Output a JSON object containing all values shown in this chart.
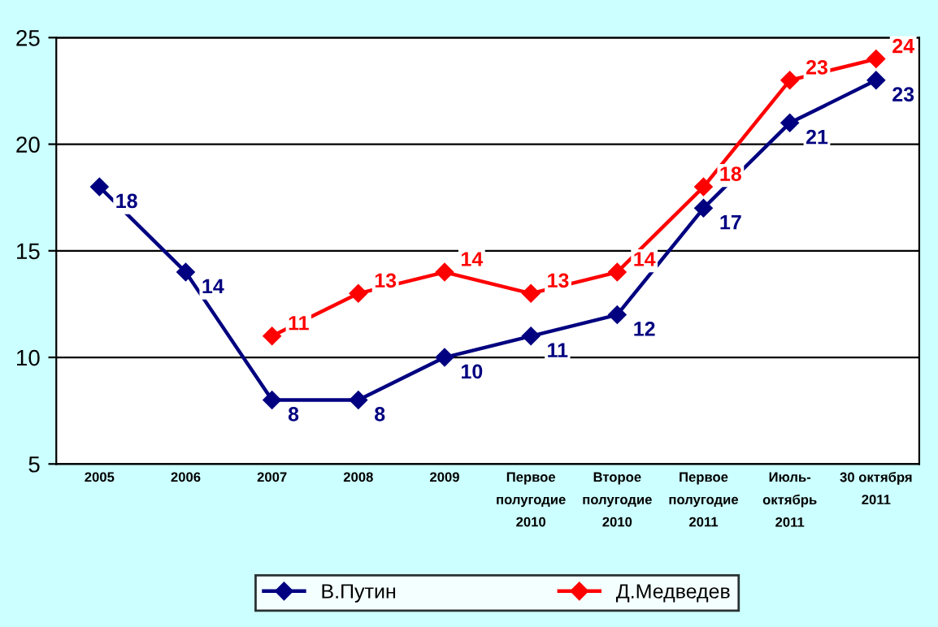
{
  "chart_data": {
    "type": "line",
    "categories": [
      "2005",
      "2006",
      "2007",
      "2008",
      "2009",
      "Первое\nполугодие\n2010",
      "Второе\nполугодие\n2010",
      "Первое\nполугодие\n2011",
      "Июль-\nоктябрь\n2011",
      "30 октября\n2011"
    ],
    "series": [
      {
        "name": "В.Путин",
        "color": "#000080",
        "values": [
          18,
          14,
          8,
          8,
          10,
          11,
          12,
          17,
          21,
          23
        ]
      },
      {
        "name": "Д.Медведев",
        "color": "#ff0000",
        "values": [
          null,
          null,
          11,
          13,
          14,
          13,
          14,
          18,
          23,
          24
        ]
      }
    ],
    "ylim": [
      5,
      25
    ],
    "yticks": [
      5,
      10,
      15,
      20,
      25
    ],
    "grid": "y",
    "legend": "bottom",
    "marker": "diamond",
    "line_style": "solid",
    "data_labels": true
  }
}
